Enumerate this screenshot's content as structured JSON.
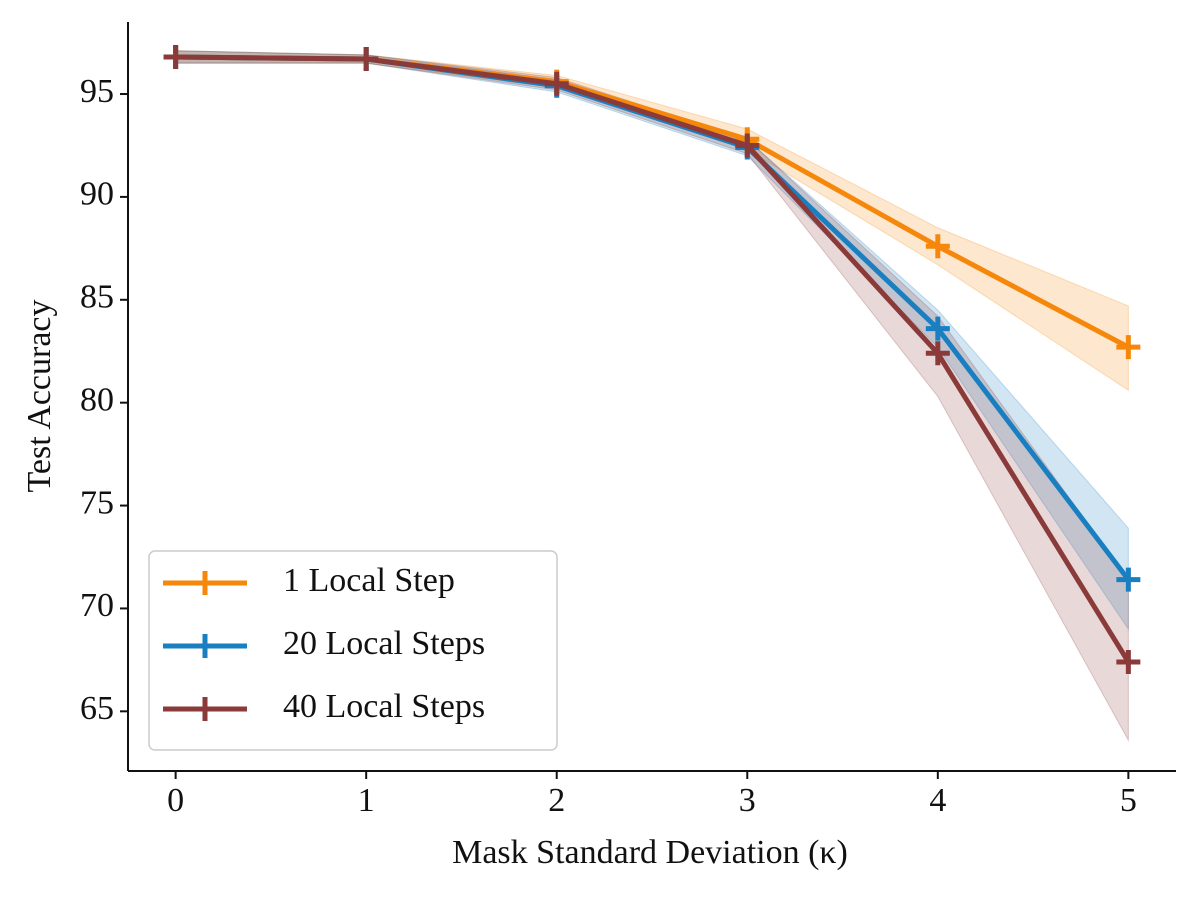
{
  "chart_data": {
    "type": "line",
    "xlabel": "Mask Standard Deviation (κ)",
    "ylabel": "Test Accuracy",
    "x": [
      0,
      1,
      2,
      3,
      4,
      5
    ],
    "xlim": [
      -0.25,
      5.25
    ],
    "xticks": [
      0,
      1,
      2,
      3,
      4,
      5
    ],
    "ylim": [
      62.1,
      98.5
    ],
    "yticks": [
      65,
      70,
      75,
      80,
      85,
      90,
      95
    ],
    "grid": false,
    "legend": "lower left",
    "series": [
      {
        "name": "1 Local Step",
        "color": "#f5870a",
        "values": [
          96.8,
          96.7,
          95.6,
          92.8,
          87.6,
          82.7
        ],
        "upper": [
          97.1,
          96.9,
          95.9,
          93.3,
          88.5,
          84.7
        ],
        "lower": [
          96.5,
          96.5,
          95.3,
          92.3,
          86.7,
          80.6
        ]
      },
      {
        "name": "20 Local Steps",
        "color": "#1a7fc1",
        "values": [
          96.8,
          96.7,
          95.4,
          92.4,
          83.6,
          71.4
        ],
        "upper": [
          97.1,
          96.9,
          95.7,
          92.8,
          84.5,
          73.9
        ],
        "lower": [
          96.5,
          96.5,
          95.1,
          92.0,
          82.7,
          69.0
        ]
      },
      {
        "name": "40 Local Steps",
        "color": "#8b3a3a",
        "values": [
          96.8,
          96.7,
          95.5,
          92.5,
          82.4,
          67.4
        ],
        "upper": [
          97.1,
          96.9,
          95.8,
          92.8,
          84.2,
          71.4
        ],
        "lower": [
          96.5,
          96.5,
          95.2,
          92.1,
          80.3,
          63.6
        ]
      }
    ]
  }
}
